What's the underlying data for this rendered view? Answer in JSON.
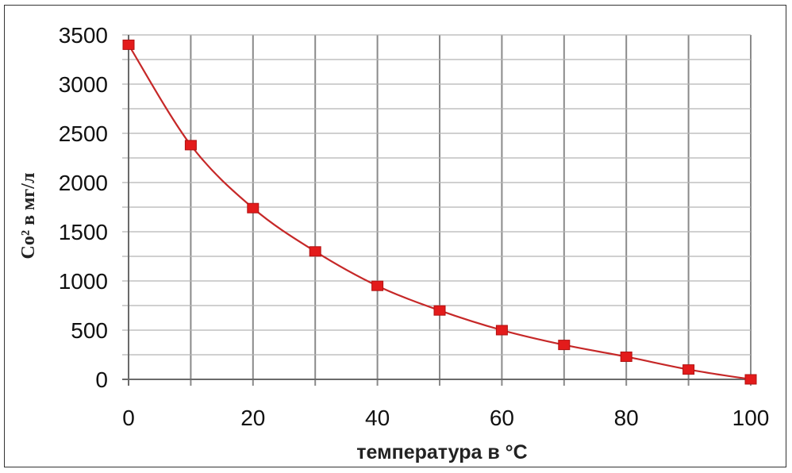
{
  "chart_data": {
    "type": "line",
    "title": "",
    "xlabel": "температура в °C",
    "ylabel": "Co² в мг/л",
    "xlim": [
      0,
      100
    ],
    "ylim": [
      0,
      3500
    ],
    "grid": true,
    "x_ticks": [
      "0",
      "20",
      "40",
      "60",
      "80",
      "100"
    ],
    "y_ticks": [
      "0",
      "500",
      "1000",
      "1500",
      "2000",
      "2500",
      "3000",
      "3500"
    ],
    "series": [
      {
        "x": [
          0,
          10,
          20,
          30,
          40,
          50,
          60,
          70,
          80,
          90,
          100
        ],
        "y": [
          3400,
          2380,
          1740,
          1300,
          950,
          700,
          500,
          350,
          230,
          100,
          0
        ],
        "line_color": "#c62828",
        "marker_color": "#e31b1b",
        "marker": "square"
      }
    ]
  }
}
